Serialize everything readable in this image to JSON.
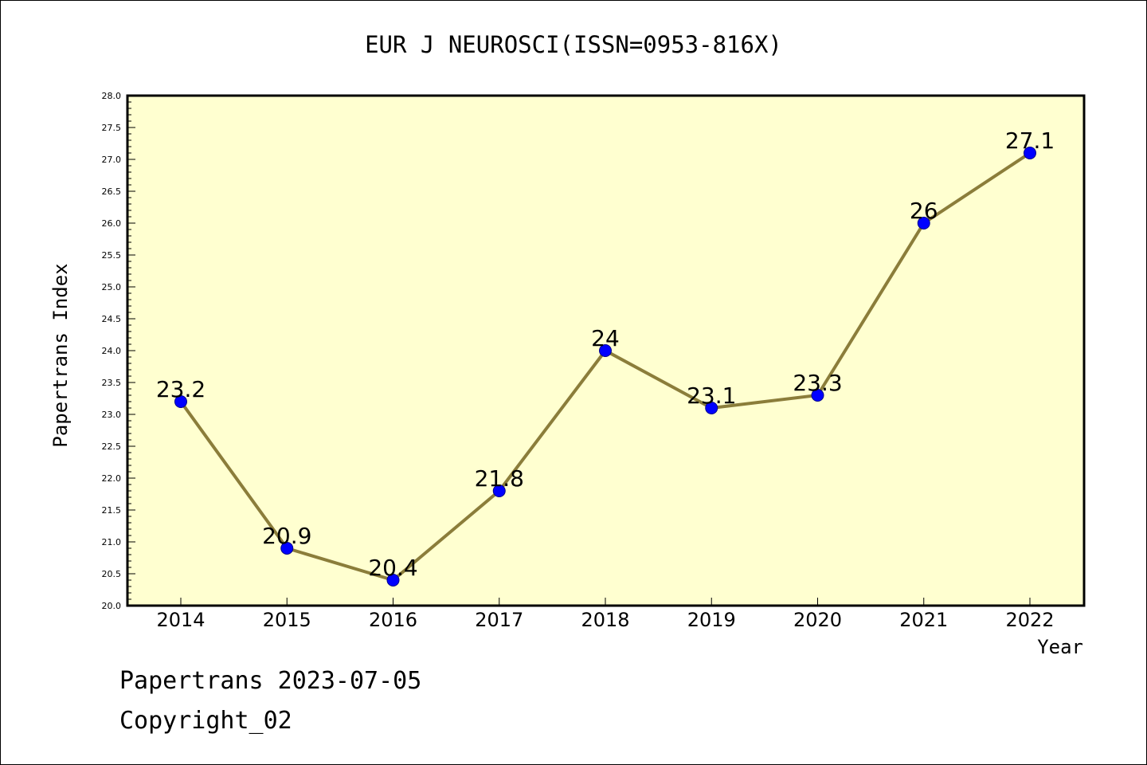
{
  "chart_data": {
    "type": "line",
    "title": "EUR J NEUROSCI(ISSN=0953-816X)",
    "xlabel": "Year",
    "ylabel": "Papertrans Index",
    "categories": [
      "2014",
      "2015",
      "2016",
      "2017",
      "2018",
      "2019",
      "2020",
      "2021",
      "2022"
    ],
    "values": [
      23.2,
      20.9,
      20.4,
      21.8,
      24,
      23.1,
      23.3,
      26,
      27.1
    ],
    "data_labels": [
      "23.2",
      "20.9",
      "20.4",
      "21.8",
      "24",
      "23.1",
      "23.3",
      "26",
      "27.1"
    ],
    "ylim": [
      20.0,
      28.0
    ],
    "y_ticks": [
      "20.0",
      "20.5",
      "21.0",
      "21.5",
      "22.0",
      "22.5",
      "23.0",
      "23.5",
      "24.0",
      "24.5",
      "25.0",
      "25.5",
      "26.0",
      "26.5",
      "27.0",
      "27.5",
      "28.0"
    ],
    "grid": false,
    "colors": {
      "plot_background": "#ffffd0",
      "line": "#8b7d3a",
      "marker": "#0000ff"
    }
  },
  "footer": {
    "line1": "Papertrans 2023-07-05",
    "line2": "Copyright_02"
  }
}
